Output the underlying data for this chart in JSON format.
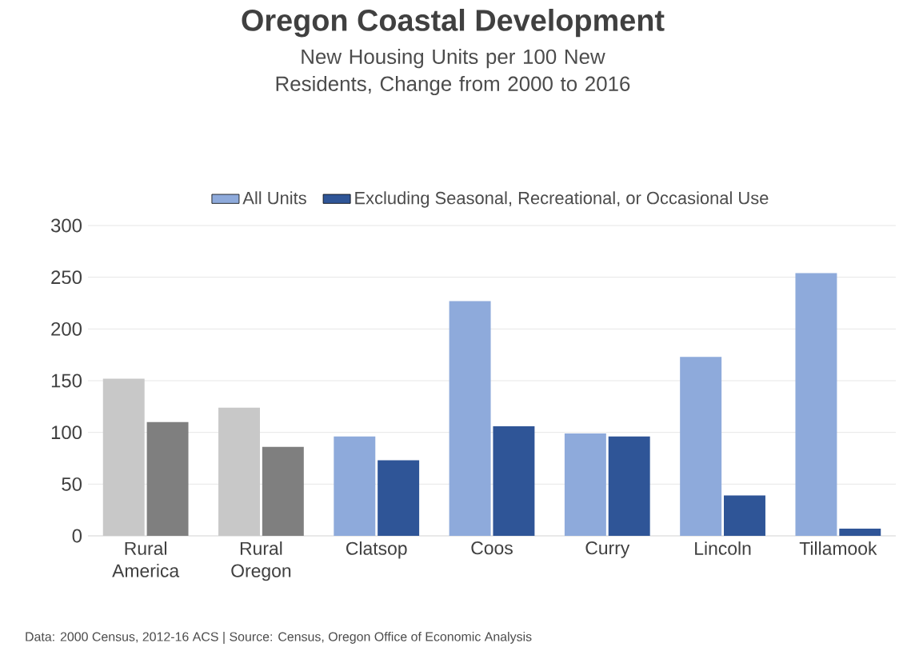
{
  "chart_data": {
    "type": "bar",
    "title": "Oregon Coastal Development",
    "subtitle": "New Housing Units per 100 New Residents, Change from 2000 to 2016",
    "categories": [
      "Rural America",
      "Rural Oregon",
      "Clatsop",
      "Coos",
      "Curry",
      "Lincoln",
      "Tillamook"
    ],
    "series": [
      {
        "name": "All Units",
        "color": "#8eaadb",
        "colors": [
          "#c8c8c8",
          "#c8c8c8",
          "#8eaadb",
          "#8eaadb",
          "#8eaadb",
          "#8eaadb",
          "#8eaadb"
        ],
        "values": [
          152,
          124,
          96,
          227,
          99,
          173,
          254
        ]
      },
      {
        "name": "Excluding Seasonal, Recreational, or Occasional Use",
        "color": "#2f5597",
        "colors": [
          "#7f7f7f",
          "#7f7f7f",
          "#2f5597",
          "#2f5597",
          "#2f5597",
          "#2f5597",
          "#2f5597"
        ],
        "values": [
          110,
          86,
          73,
          106,
          96,
          39,
          7
        ]
      }
    ],
    "ylim": [
      0,
      300
    ],
    "yticks": [
      0,
      50,
      100,
      150,
      200,
      250,
      300
    ],
    "grid": "y",
    "legend": "top",
    "annotations": [
      "Data: 2000 Census, 2012-16 ACS  |  Source: Census, Oregon Office of Economic Analysis"
    ]
  }
}
